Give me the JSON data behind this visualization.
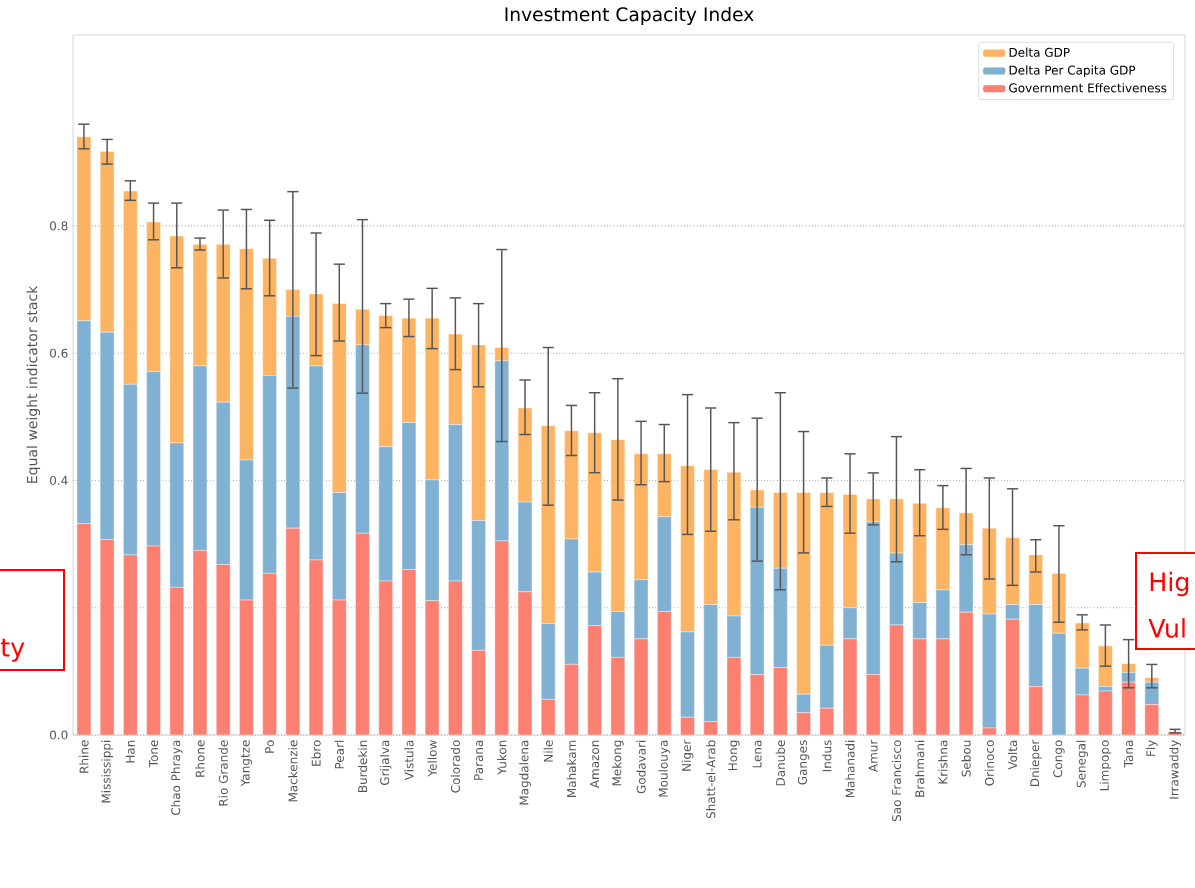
{
  "chart_data": {
    "type": "bar",
    "title": "Investment Capacity Index",
    "ylabel": "Equal weight indicator stack",
    "categories": [
      "Rhine",
      "Mississippi",
      "Han",
      "Tone",
      "Chao Phraya",
      "Rhone",
      "Rio Grande",
      "Yangtze",
      "Po",
      "Mackenzie",
      "Ebro",
      "Pearl",
      "Burdekin",
      "Grijalva",
      "Vistula",
      "Yellow",
      "Colorado",
      "Parana",
      "Yukon",
      "Magdalena",
      "Nile",
      "Mahakam",
      "Amazon",
      "Mekong",
      "Godavari",
      "Moulouya",
      "Niger",
      "Shatt-el-Arab",
      "Hong",
      "Lena",
      "Danube",
      "Ganges",
      "Indus",
      "Mahanadi",
      "Amur",
      "Sao Francisco",
      "Brahmani",
      "Krishna",
      "Sebou",
      "Orinoco",
      "Volta",
      "Dnieper",
      "Congo",
      "Senegal",
      "Limpopo",
      "Tana",
      "Fly",
      "Irrawaddy"
    ],
    "stacked": true,
    "series": [
      {
        "name": "Government Effectiveness",
        "color": "#fb8072",
        "values": [
          0.332,
          0.307,
          0.283,
          0.297,
          0.232,
          0.29,
          0.268,
          0.212,
          0.254,
          0.325,
          0.275,
          0.212,
          0.317,
          0.242,
          0.26,
          0.211,
          0.242,
          0.133,
          0.305,
          0.225,
          0.056,
          0.111,
          0.172,
          0.122,
          0.151,
          0.194,
          0.028,
          0.021,
          0.122,
          0.095,
          0.106,
          0.035,
          0.042,
          0.151,
          0.095,
          0.173,
          0.151,
          0.151,
          0.193,
          0.011,
          0.182,
          0.076,
          0,
          0.063,
          0.069,
          0.083,
          0.048,
          0.005
        ]
      },
      {
        "name": "Delta Per Capita GDP",
        "color": "#80b1d3",
        "values": [
          0.319,
          0.326,
          0.268,
          0.274,
          0.227,
          0.29,
          0.255,
          0.22,
          0.311,
          0.333,
          0.305,
          0.169,
          0.296,
          0.211,
          0.231,
          0.19,
          0.246,
          0.204,
          0.283,
          0.141,
          0.119,
          0.197,
          0.084,
          0.072,
          0.093,
          0.149,
          0.134,
          0.184,
          0.065,
          0.263,
          0.156,
          0.029,
          0.099,
          0.049,
          0.24,
          0.113,
          0.057,
          0.077,
          0.106,
          0.179,
          0.023,
          0.129,
          0.16,
          0.042,
          0.007,
          0.015,
          0.035,
          0
        ]
      },
      {
        "name": "Delta GDP",
        "color": "#fdb462",
        "values": [
          0.289,
          0.284,
          0.304,
          0.235,
          0.325,
          0.191,
          0.248,
          0.332,
          0.184,
          0.042,
          0.113,
          0.297,
          0.056,
          0.206,
          0.164,
          0.254,
          0.142,
          0.276,
          0.021,
          0.148,
          0.311,
          0.17,
          0.219,
          0.27,
          0.198,
          0.099,
          0.261,
          0.212,
          0.226,
          0.027,
          0.119,
          0.317,
          0.24,
          0.178,
          0.036,
          0.085,
          0.156,
          0.129,
          0.05,
          0.135,
          0.105,
          0.078,
          0.094,
          0.071,
          0.064,
          0.014,
          0.007,
          0
        ],
        "errors": [
          [
            0.92,
            0.961
          ],
          [
            0.896,
            0.937
          ],
          [
            0.839,
            0.872
          ],
          [
            0.777,
            0.837
          ],
          [
            0.733,
            0.837
          ],
          [
            0.761,
            0.782
          ],
          [
            0.717,
            0.826
          ],
          [
            0.7,
            0.827
          ],
          [
            0.689,
            0.81
          ],
          [
            0.544,
            0.855
          ],
          [
            0.595,
            0.79
          ],
          [
            0.618,
            0.741
          ],
          [
            0.536,
            0.811
          ],
          [
            0.639,
            0.679
          ],
          [
            0.625,
            0.686
          ],
          [
            0.606,
            0.703
          ],
          [
            0.573,
            0.688
          ],
          [
            0.546,
            0.679
          ],
          [
            0.46,
            0.764
          ],
          [
            0.471,
            0.559
          ],
          [
            0.36,
            0.61
          ],
          [
            0.438,
            0.519
          ],
          [
            0.411,
            0.539
          ],
          [
            0.368,
            0.561
          ],
          [
            0.392,
            0.494
          ],
          [
            0.397,
            0.489
          ],
          [
            0.314,
            0.536
          ],
          [
            0.319,
            0.515
          ],
          [
            0.337,
            0.492
          ],
          [
            0.272,
            0.499
          ],
          [
            0.227,
            0.539
          ],
          [
            0.285,
            0.478
          ],
          [
            0.358,
            0.405
          ],
          [
            0.316,
            0.443
          ],
          [
            0.329,
            0.413
          ],
          [
            0.271,
            0.47
          ],
          [
            0.312,
            0.418
          ],
          [
            0.322,
            0.393
          ],
          [
            0.282,
            0.42
          ],
          [
            0.244,
            0.405
          ],
          [
            0.234,
            0.388
          ],
          [
            0.255,
            0.308
          ],
          [
            0.176,
            0.33
          ],
          [
            0.164,
            0.19
          ],
          [
            0.107,
            0.174
          ],
          [
            0.073,
            0.151
          ],
          [
            0.073,
            0.112
          ],
          [
            0.002,
            0.01
          ]
        ]
      }
    ],
    "ylim": [
      0,
      1.1
    ],
    "yticks": [
      {
        "value": 0,
        "label": "0.0"
      },
      {
        "value": 0.2,
        "label": null
      },
      {
        "value": 0.4,
        "label": "0.4"
      },
      {
        "value": 0.6,
        "label": "0.6"
      },
      {
        "value": 0.8,
        "label": "0.8"
      }
    ],
    "grid": "y",
    "legend": "top right",
    "annotations": [
      "ty",
      "Hig",
      "Vul"
    ]
  }
}
